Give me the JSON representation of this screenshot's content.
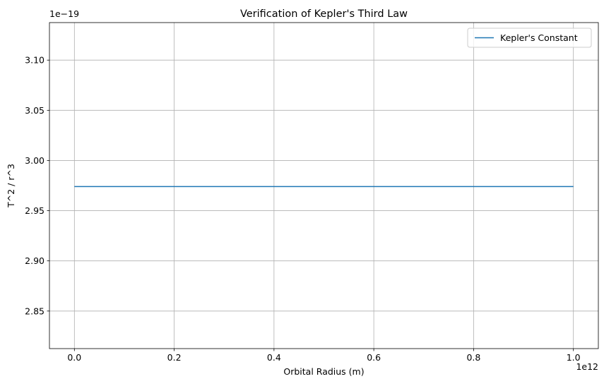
{
  "chart_data": {
    "type": "line",
    "title": "Verification of Kepler's Third Law",
    "xlabel": "Orbital Radius (m)",
    "ylabel": "T^2 / r^3",
    "x_offset_label": "1e12",
    "y_offset_label": "1e−19",
    "xlim": [
      -0.05,
      1.05
    ],
    "ylim": [
      2.8126,
      3.1374
    ],
    "x_ticks": [
      0.0,
      0.2,
      0.4,
      0.6,
      0.8,
      1.0
    ],
    "x_tick_labels": [
      "0.0",
      "0.2",
      "0.4",
      "0.6",
      "0.8",
      "1.0"
    ],
    "y_ticks": [
      2.85,
      2.9,
      2.95,
      3.0,
      3.05,
      3.1
    ],
    "y_tick_labels": [
      "2.85",
      "2.90",
      "2.95",
      "3.00",
      "3.05",
      "3.10"
    ],
    "grid": true,
    "legend_position": "top-right",
    "series": [
      {
        "name": "Kepler's Constant",
        "color": "#1f77b4",
        "x": [
          0.0,
          1.0
        ],
        "y": [
          2.974,
          2.974
        ]
      }
    ]
  }
}
